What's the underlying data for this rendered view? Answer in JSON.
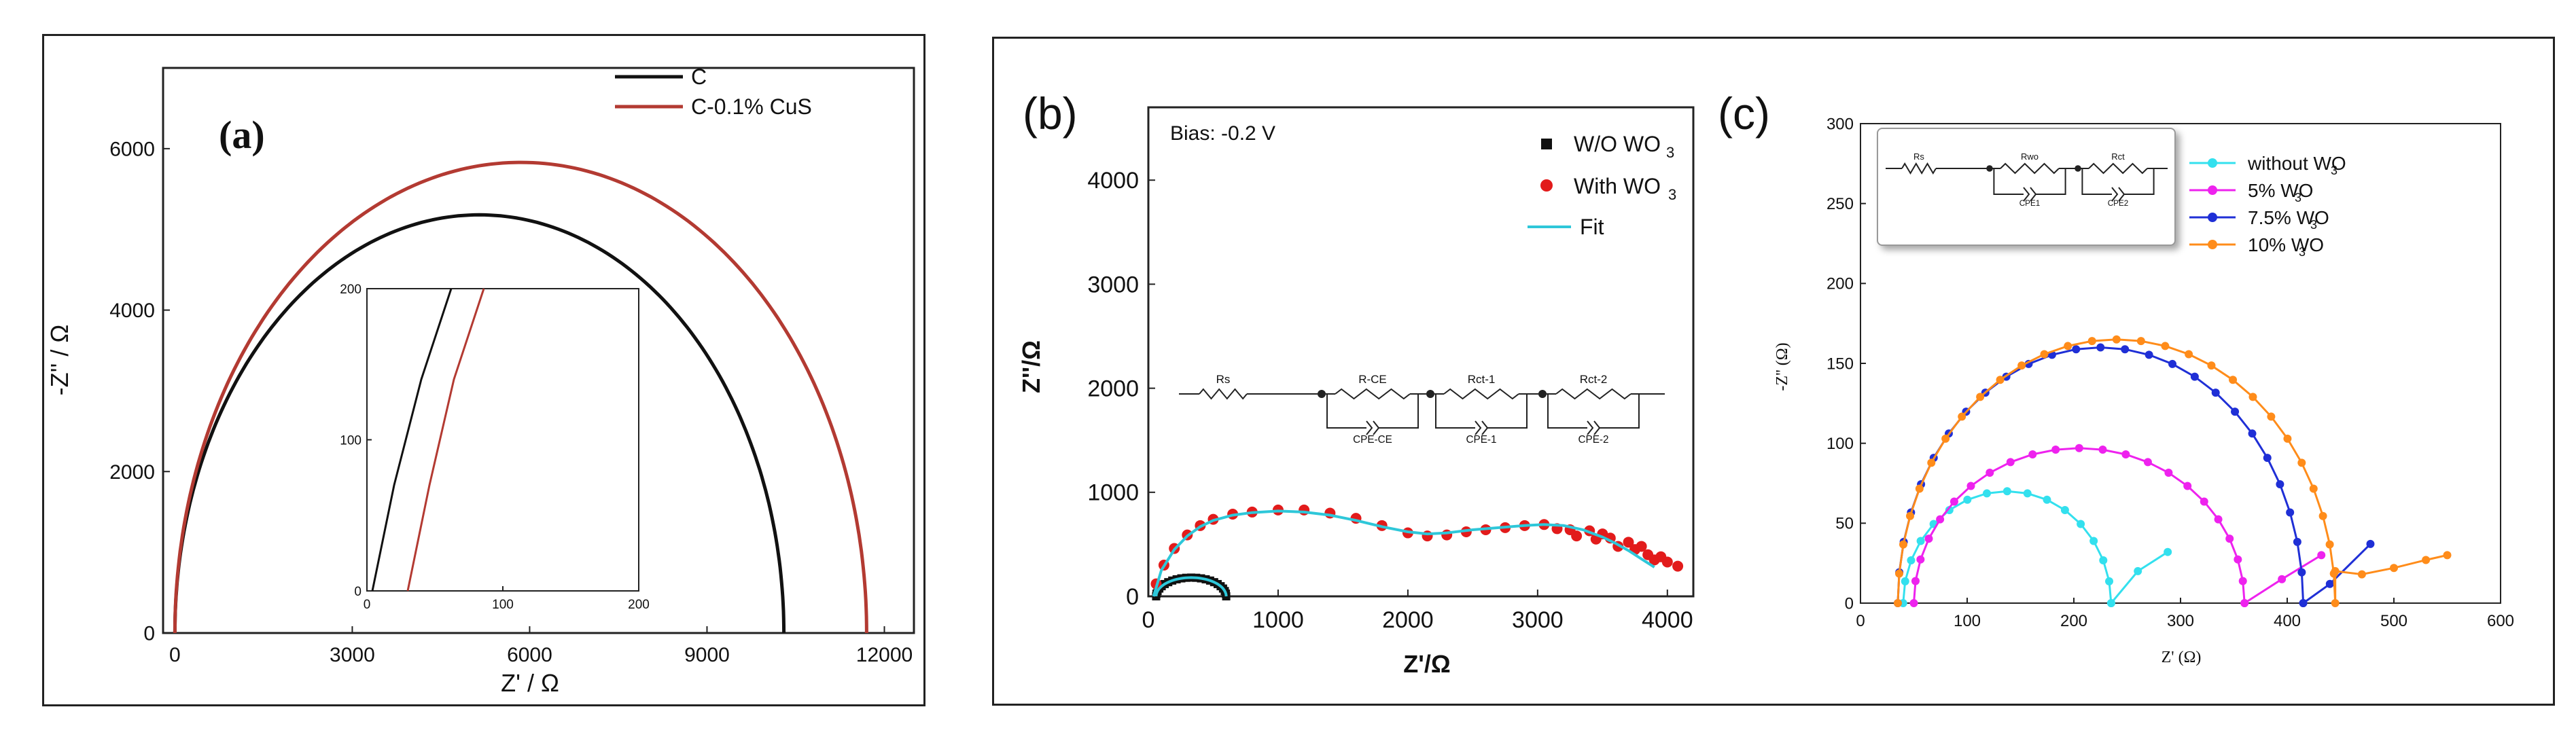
{
  "chart_data": [
    {
      "type": "line",
      "panel_label": "(a)",
      "xlabel": "Z' / Ω",
      "ylabel": "-Z'' / Ω",
      "xlim": [
        -200,
        12500
      ],
      "ylim": [
        0,
        7000
      ],
      "xticks": [
        0,
        3000,
        6000,
        9000,
        12000
      ],
      "yticks": [
        0,
        2000,
        4000,
        6000
      ],
      "series": [
        {
          "name": "C",
          "color": "#111111",
          "model": "semicircle",
          "x_start": 0,
          "x_end": 10300,
          "peak": 5180
        },
        {
          "name": "C-0.1% CuS",
          "color": "#b33a32",
          "model": "semicircle",
          "x_start": 0,
          "x_end": 11700,
          "peak": 5830
        }
      ],
      "inset": {
        "xlim": [
          0,
          200
        ],
        "ylim": [
          0,
          200
        ],
        "xticks": [
          0,
          100,
          200
        ],
        "yticks": [
          0,
          100,
          200
        ],
        "series": [
          {
            "name": "C",
            "color": "#111111",
            "x": [
              4,
              20,
              40,
              62
            ],
            "y": [
              0,
              70,
              140,
              200
            ]
          },
          {
            "name": "C-0.1% CuS",
            "color": "#b33a32",
            "x": [
              30,
              46,
              64,
              86
            ],
            "y": [
              0,
              70,
              140,
              200
            ]
          }
        ]
      }
    },
    {
      "type": "scatter",
      "panel_label": "(b)",
      "annotation": "Bias: -0.2 V",
      "xlabel": "Z'/Ω",
      "ylabel": "Z''/Ω",
      "xlim": [
        0,
        4200
      ],
      "ylim": [
        0,
        4700
      ],
      "xticks": [
        0,
        1000,
        2000,
        3000,
        4000
      ],
      "yticks": [
        0,
        1000,
        2000,
        3000,
        4000
      ],
      "series": [
        {
          "name": "W/O WO3",
          "legend_main": "W/O WO",
          "legend_sub": "3",
          "color": "#111111",
          "marker": "square",
          "model": "semicircle",
          "x_start": 60,
          "x_end": 600,
          "peak": 180,
          "n": 22
        },
        {
          "name": "With WO3",
          "legend_main": "With WO",
          "legend_sub": "3",
          "color": "#e21b1b",
          "marker": "circle",
          "x": [
            60,
            120,
            200,
            300,
            400,
            500,
            650,
            800,
            1000,
            1200,
            1400,
            1600,
            1800,
            2000,
            2150,
            2300,
            2450,
            2600,
            2750,
            2900,
            3050,
            3150,
            3250,
            3300,
            3400,
            3450,
            3500,
            3560,
            3620,
            3700,
            3750,
            3800,
            3850,
            3900,
            3950,
            4000,
            4080
          ],
          "y": [
            120,
            300,
            460,
            590,
            680,
            740,
            790,
            810,
            830,
            830,
            800,
            750,
            680,
            610,
            580,
            590,
            620,
            640,
            660,
            680,
            690,
            650,
            640,
            580,
            630,
            550,
            600,
            560,
            480,
            520,
            450,
            480,
            400,
            350,
            380,
            330,
            290
          ]
        },
        {
          "name": "Fit",
          "legend_main": "Fit",
          "legend_sub": "",
          "color": "#2ec7d9",
          "marker": "line",
          "x": [
            40,
            100,
            200,
            300,
            400,
            500,
            650,
            800,
            1000,
            1200,
            1400,
            1600,
            1800,
            2000,
            2150,
            2300,
            2500,
            2700,
            2900,
            3050,
            3200,
            3350,
            3500,
            3600,
            3700,
            3800,
            3900
          ],
          "y": [
            0,
            250,
            450,
            580,
            670,
            730,
            780,
            805,
            820,
            810,
            780,
            730,
            670,
            620,
            600,
            610,
            640,
            660,
            680,
            690,
            680,
            640,
            570,
            510,
            440,
            360,
            280
          ]
        },
        {
          "name": "W/O WO3 fit",
          "legend": false,
          "color": "#2ec7d9",
          "marker": "line",
          "model": "semicircle",
          "x_start": 60,
          "x_end": 600,
          "peak": 180
        }
      ],
      "circuit_labels": [
        "Rs",
        "R-CE",
        "Rct-1",
        "Rct-2",
        "CPE-CE",
        "CPE-1",
        "CPE-2"
      ]
    },
    {
      "type": "scatter",
      "panel_label": "(c)",
      "xlabel": "Z' (Ω)",
      "ylabel": "-Z'' (Ω)",
      "xlim": [
        0,
        600
      ],
      "ylim": [
        0,
        300
      ],
      "xticks": [
        0,
        100,
        200,
        300,
        400,
        500,
        600
      ],
      "yticks": [
        0,
        50,
        100,
        150,
        200,
        250,
        300
      ],
      "series": [
        {
          "name": "without WO3",
          "legend_main": "without WO",
          "legend_sub": "3",
          "color": "#33e0ee",
          "model": "semicircle",
          "x_start": 40,
          "x_end": 235,
          "peak": 70,
          "n": 16,
          "tail_x": [
            235,
            260,
            288
          ],
          "tail_y": [
            0,
            20,
            32
          ]
        },
        {
          "name": "5% WO3",
          "legend_main": "5% WO",
          "legend_sub": "3",
          "color": "#ee22ee",
          "model": "semicircle",
          "x_start": 50,
          "x_end": 360,
          "peak": 97,
          "n": 22,
          "tail_x": [
            360,
            395,
            432
          ],
          "tail_y": [
            0,
            15,
            30
          ]
        },
        {
          "name": "7.5% WO3",
          "legend_main": "7.5% WO",
          "legend_sub": "3",
          "color": "#1f2fd6",
          "model": "semicircle",
          "x_start": 35,
          "x_end": 415,
          "peak": 160,
          "n": 26,
          "tail_x": [
            415,
            440,
            478
          ],
          "tail_y": [
            0,
            12,
            37
          ]
        },
        {
          "name": "10% WO3",
          "legend_main": "10% WO",
          "legend_sub": "3",
          "color": "#ff8c1a",
          "model": "semicircle",
          "x_start": 35,
          "x_end": 445,
          "peak": 165,
          "n": 28,
          "tail_x": [
            445,
            470,
            500,
            530,
            550
          ],
          "tail_y": [
            20,
            18,
            22,
            27,
            30
          ]
        }
      ],
      "circuit_labels": [
        "Rs",
        "Rwo",
        "Rct",
        "CPE1",
        "CPE2"
      ]
    }
  ]
}
